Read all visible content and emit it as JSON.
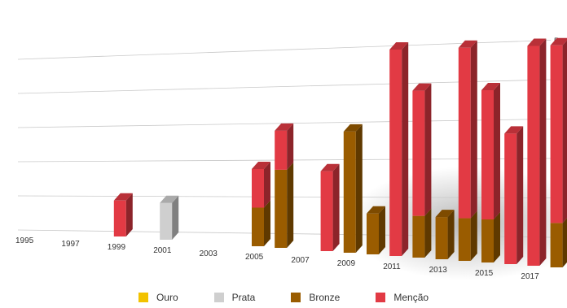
{
  "chart_data": {
    "type": "bar",
    "stacked": true,
    "three_d": true,
    "title": "",
    "xlabel": "",
    "ylabel": "",
    "categories": [
      "1995",
      "1997",
      "1999",
      "2001",
      "2003",
      "2005",
      "2007",
      "2009",
      "2011",
      "2013",
      "2015",
      "2017"
    ],
    "year_labels": [
      "1995",
      "1997",
      "1999",
      "2001",
      "2003",
      "2005",
      "2007",
      "2009",
      "2011",
      "2013",
      "2015",
      "2017"
    ],
    "yticks": [
      "0",
      "1",
      "2",
      "3",
      "4",
      "5"
    ],
    "ylim": [
      0,
      5
    ],
    "grid": true,
    "legend_position": "bottom",
    "bars": [
      {
        "year": 1999,
        "Ouro": 0,
        "Prata": 0,
        "Bronze": 0,
        "Mencao": 1
      },
      {
        "year": 2001,
        "Ouro": 0,
        "Prata": 1,
        "Bronze": 0,
        "Mencao": 0
      },
      {
        "year": 2005,
        "Ouro": 0,
        "Prata": 0,
        "Bronze": 1,
        "Mencao": 1
      },
      {
        "year": 2006,
        "Ouro": 0,
        "Prata": 0,
        "Bronze": 2,
        "Mencao": 1
      },
      {
        "year": 2008,
        "Ouro": 0,
        "Prata": 0,
        "Bronze": 0,
        "Mencao": 2
      },
      {
        "year": 2009,
        "Ouro": 0,
        "Prata": 0,
        "Bronze": 3,
        "Mencao": 0
      },
      {
        "year": 2010,
        "Ouro": 0,
        "Prata": 0,
        "Bronze": 1,
        "Mencao": 0
      },
      {
        "year": 2011,
        "Ouro": 0,
        "Prata": 0,
        "Bronze": 0,
        "Mencao": 5
      },
      {
        "year": 2012,
        "Ouro": 0,
        "Prata": 0,
        "Bronze": 1,
        "Mencao": 3
      },
      {
        "year": 2013,
        "Ouro": 0,
        "Prata": 0,
        "Bronze": 1,
        "Mencao": 0
      },
      {
        "year": 2014,
        "Ouro": 0,
        "Prata": 0,
        "Bronze": 1,
        "Mencao": 4
      },
      {
        "year": 2015,
        "Ouro": 0,
        "Prata": 0,
        "Bronze": 1,
        "Mencao": 3
      },
      {
        "year": 2016,
        "Ouro": 0,
        "Prata": 0,
        "Bronze": 0,
        "Mencao": 3
      },
      {
        "year": 2017,
        "Ouro": 0,
        "Prata": 0,
        "Bronze": 0,
        "Mencao": 5
      },
      {
        "year": 2018,
        "Ouro": 0,
        "Prata": 0,
        "Bronze": 1,
        "Mencao": 4
      }
    ],
    "series": [
      {
        "key": "Ouro",
        "name": "Ouro",
        "color": "#f2c200"
      },
      {
        "key": "Prata",
        "name": "Prata",
        "color": "#cfcfcf"
      },
      {
        "key": "Bronze",
        "name": "Bronze",
        "color": "#9a5c00"
      },
      {
        "key": "Mencao",
        "name": "Menção",
        "color": "#e23a44"
      }
    ]
  }
}
